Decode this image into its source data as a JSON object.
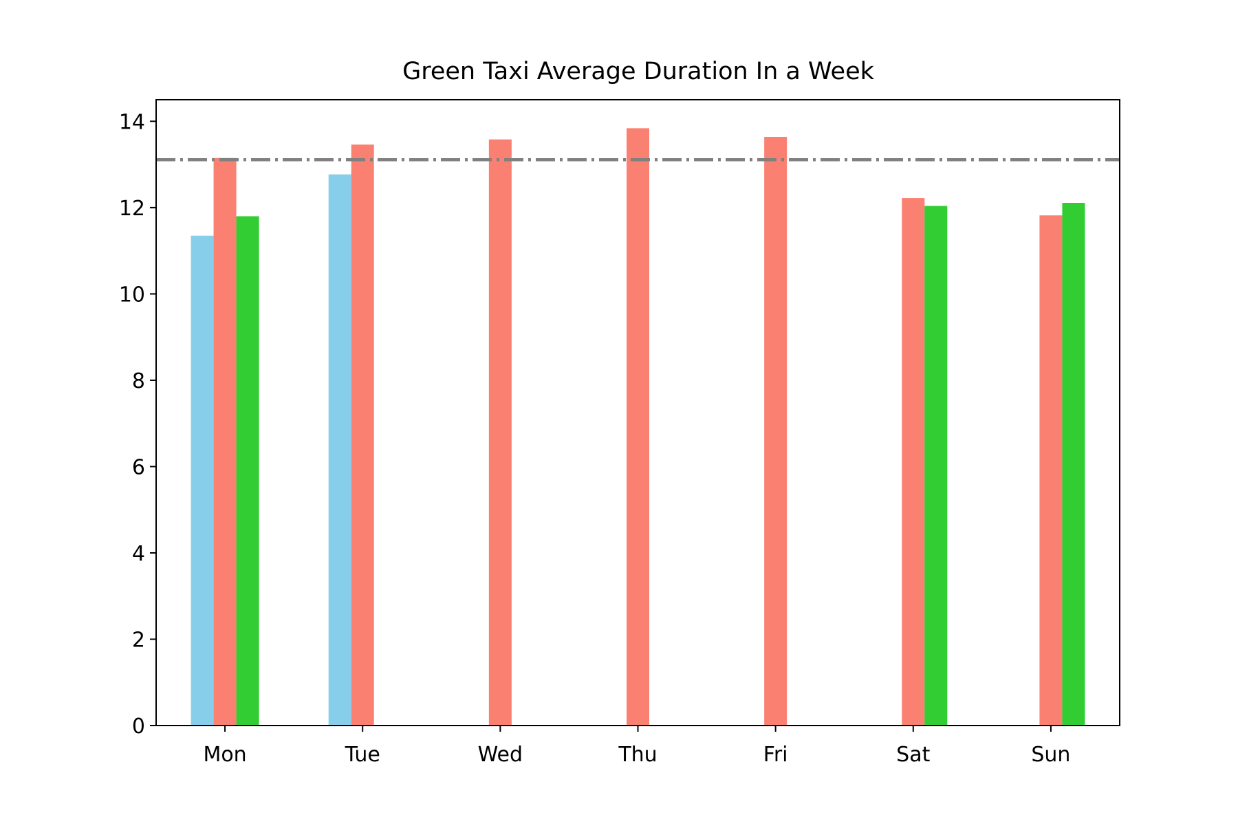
{
  "chart_data": {
    "type": "bar",
    "title": "Green Taxi Average Duration In a Week",
    "xlabel": "",
    "ylabel": "",
    "categories": [
      "Mon",
      "Tue",
      "Wed",
      "Thu",
      "Fri",
      "Sat",
      "Sun"
    ],
    "ylim": [
      0,
      14.5
    ],
    "yticks": [
      "0",
      "2",
      "4",
      "6",
      "8",
      "10",
      "12",
      "14"
    ],
    "grid": false,
    "legend": "none",
    "series": [
      {
        "color": "#87CEEB",
        "values": [
          11.35,
          12.77,
          null,
          null,
          null,
          null,
          null
        ]
      },
      {
        "color": "#FA8072",
        "values": [
          13.15,
          13.46,
          13.58,
          13.84,
          13.64,
          12.22,
          11.82
        ]
      },
      {
        "color": "#32CD32",
        "values": [
          11.8,
          null,
          null,
          null,
          null,
          12.04,
          12.11
        ]
      }
    ],
    "reference_line": {
      "value": 13.11,
      "color": "#808080",
      "style": "dash-dot"
    }
  }
}
